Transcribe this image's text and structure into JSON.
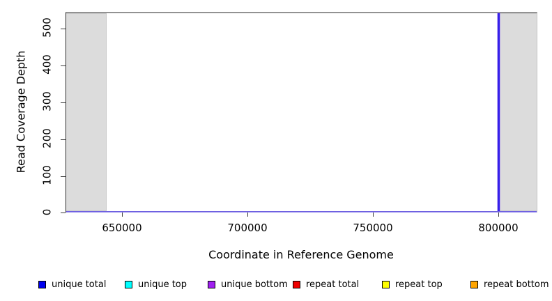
{
  "axes": {
    "x": {
      "label": "Coordinate in Reference Genome",
      "tick_labels": [
        "650000",
        "700000",
        "750000",
        "800000"
      ]
    },
    "y": {
      "label": "Read Coverage Depth",
      "tick_labels": [
        "0",
        "100",
        "200",
        "300",
        "400",
        "500"
      ]
    }
  },
  "legend": {
    "items": [
      {
        "label": "unique total",
        "color": "#0000EE"
      },
      {
        "label": "unique top",
        "color": "#00FFFF"
      },
      {
        "label": "unique bottom",
        "color": "#A020F0"
      },
      {
        "label": "repeat total",
        "color": "#EE0000"
      },
      {
        "label": "repeat top",
        "color": "#FFFF00"
      },
      {
        "label": "repeat bottom",
        "color": "#FFA500"
      }
    ]
  },
  "visual": {
    "shade_color": "#DCDCDC",
    "spike_color": "#3520EA",
    "baseline_color_top": "#5A4ADC",
    "baseline_color_bottom": "#A79CF0",
    "plot_border_color": "#929292"
  },
  "chart_data": {
    "type": "line",
    "title": "",
    "xlabel": "Coordinate in Reference Genome",
    "ylabel": "Read Coverage Depth",
    "xlim": [
      627500,
      815500
    ],
    "ylim": [
      0,
      543
    ],
    "x_ticks": [
      650000,
      700000,
      750000,
      800000
    ],
    "y_ticks": [
      0,
      100,
      200,
      300,
      400,
      500
    ],
    "grid": false,
    "legend_position": "bottom",
    "series": [
      {
        "name": "unique total",
        "color": "#0000EE",
        "x": [
          627500,
          799900,
          800000,
          800100,
          815500
        ],
        "y": [
          0,
          0,
          543,
          0,
          0
        ],
        "clipped_at_top": true
      },
      {
        "name": "unique top",
        "color": "#00FFFF",
        "x": [
          627500,
          815500
        ],
        "y": [
          0,
          0
        ]
      },
      {
        "name": "unique bottom",
        "color": "#A020F0",
        "x": [
          627500,
          799900,
          800000,
          800100,
          815500
        ],
        "y": [
          0,
          0,
          543,
          0,
          0
        ],
        "clipped_at_top": true
      },
      {
        "name": "repeat total",
        "color": "#EE0000",
        "x": [
          627500,
          815500
        ],
        "y": [
          0,
          0
        ]
      },
      {
        "name": "repeat top",
        "color": "#FFFF00",
        "x": [
          627500,
          815500
        ],
        "y": [
          0,
          0
        ]
      },
      {
        "name": "repeat bottom",
        "color": "#FFA500",
        "x": [
          627500,
          815500
        ],
        "y": [
          0,
          0
        ]
      }
    ],
    "shaded_regions": [
      {
        "x0": 627500,
        "x1": 643600,
        "color": "#DCDCDC"
      },
      {
        "x0": 800500,
        "x1": 815500,
        "color": "#DCDCDC"
      }
    ],
    "annotations": [
      "vertical coverage spike at x=800000 spanning full y-range"
    ]
  }
}
